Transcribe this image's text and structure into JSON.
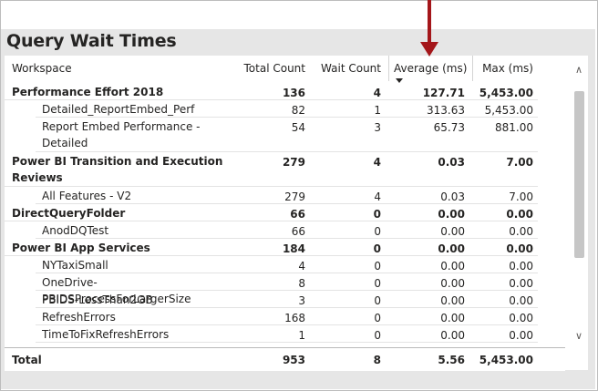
{
  "visual": {
    "title": "Query Wait Times"
  },
  "table": {
    "columns": [
      "Workspace",
      "Total Count",
      "Wait Count",
      "Average (ms)",
      "Max (ms)"
    ],
    "sorted_column": "Average (ms)",
    "sort_direction": "descending",
    "rows": [
      {
        "type": "group",
        "name": "Performance Effort 2018",
        "total": "136",
        "wait": "4",
        "avg": "127.71",
        "max": "5,453.00"
      },
      {
        "type": "child",
        "name": "Detailed_ReportEmbed_Perf",
        "total": "82",
        "wait": "1",
        "avg": "313.63",
        "max": "5,453.00"
      },
      {
        "type": "child",
        "name": "Report Embed Performance - Detailed",
        "total": "54",
        "wait": "3",
        "avg": "65.73",
        "max": "881.00"
      },
      {
        "type": "group",
        "name": "Power BI Transition and Execution Reviews",
        "total": "279",
        "wait": "4",
        "avg": "0.03",
        "max": "7.00"
      },
      {
        "type": "child",
        "name": "All Features - V2",
        "total": "279",
        "wait": "4",
        "avg": "0.03",
        "max": "7.00"
      },
      {
        "type": "group",
        "name": "DirectQueryFolder",
        "total": "66",
        "wait": "0",
        "avg": "0.00",
        "max": "0.00"
      },
      {
        "type": "child",
        "name": "AnodDQTest",
        "total": "66",
        "wait": "0",
        "avg": "0.00",
        "max": "0.00"
      },
      {
        "type": "group",
        "name": "Power BI App Services",
        "total": "184",
        "wait": "0",
        "avg": "0.00",
        "max": "0.00"
      },
      {
        "type": "child",
        "name": "NYTaxiSmall",
        "total": "4",
        "wait": "0",
        "avg": "0.00",
        "max": "0.00"
      },
      {
        "type": "child",
        "name": "OneDrive-PBIDSProcessForLargerSize",
        "total": "8",
        "wait": "0",
        "avg": "0.00",
        "max": "0.00"
      },
      {
        "type": "child",
        "name": "PBIDS-LessThan2GB",
        "total": "3",
        "wait": "0",
        "avg": "0.00",
        "max": "0.00"
      },
      {
        "type": "child",
        "name": "RefreshErrors",
        "total": "168",
        "wait": "0",
        "avg": "0.00",
        "max": "0.00"
      },
      {
        "type": "child",
        "name": "TimeToFixRefreshErrors",
        "total": "1",
        "wait": "0",
        "avg": "0.00",
        "max": "0.00"
      }
    ],
    "total": {
      "name": "Total",
      "total": "953",
      "wait": "8",
      "avg": "5.56",
      "max": "5,453.00"
    }
  },
  "annotation": {
    "arrow_color": "#a4161a",
    "arrow_target": "Average (ms)"
  },
  "icons": {
    "sort": "sort-descending-icon",
    "scroll_up": "chevron-up-icon",
    "scroll_down": "chevron-down-icon"
  },
  "colors": {
    "visual_background": "#e6e6e6",
    "table_background": "#ffffff",
    "text": "#252423"
  }
}
